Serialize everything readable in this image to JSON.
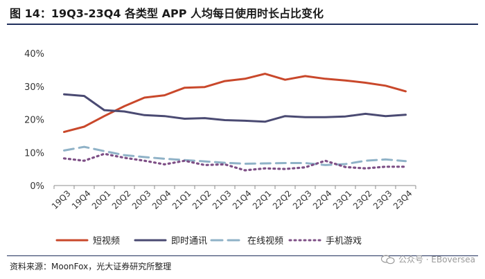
{
  "header": {
    "title": "图 14：19Q3-23Q4 各类型 APP 人均每日使用时长占比变化"
  },
  "footer": {
    "source": "资料来源：MoonFox，光大证券研究所整理",
    "watermark": "公众号 · EBoversea"
  },
  "chart_data": {
    "type": "line",
    "title": "19Q3-23Q4 各类型 APP 人均每日使用时长占比变化",
    "categories": [
      "19Q3",
      "19Q4",
      "20Q1",
      "20Q2",
      "20Q3",
      "20Q4",
      "21Q1",
      "21Q2",
      "21Q3",
      "21Q4",
      "22Q1",
      "22Q2",
      "22Q3",
      "22Q4",
      "23Q1",
      "23Q2",
      "23Q3",
      "23Q4"
    ],
    "ylim": [
      0,
      40
    ],
    "yticks": [
      0,
      10,
      20,
      30,
      40
    ],
    "ytick_labels": [
      "0%",
      "10%",
      "20%",
      "30%",
      "40%"
    ],
    "series": [
      {
        "name": "短视频",
        "color": "#c9482b",
        "dash": "solid",
        "values": [
          16.2,
          17.8,
          21.0,
          24.0,
          26.6,
          27.3,
          29.6,
          29.8,
          31.6,
          32.3,
          33.8,
          32.0,
          33.1,
          32.3,
          31.8,
          31.1,
          30.2,
          28.5
        ]
      },
      {
        "name": "即时通讯",
        "color": "#4a4a72",
        "dash": "solid",
        "values": [
          27.6,
          27.1,
          22.8,
          22.4,
          21.3,
          21.0,
          20.2,
          20.4,
          19.8,
          19.6,
          19.3,
          21.0,
          20.7,
          20.7,
          20.9,
          21.7,
          21.0,
          21.4
        ]
      },
      {
        "name": "在线视频",
        "color": "#8fb2c7",
        "dash": "longdash",
        "values": [
          10.6,
          11.7,
          10.4,
          9.2,
          8.6,
          8.1,
          7.7,
          7.3,
          6.9,
          6.6,
          6.7,
          6.8,
          6.8,
          6.2,
          6.5,
          7.5,
          7.9,
          7.4
        ]
      },
      {
        "name": "手机游戏",
        "color": "#7e4f86",
        "dash": "dots",
        "values": [
          8.2,
          7.5,
          9.6,
          8.4,
          7.5,
          6.4,
          7.5,
          6.2,
          6.4,
          4.6,
          5.2,
          5.0,
          5.5,
          7.5,
          5.6,
          5.2,
          5.7,
          5.7
        ]
      }
    ],
    "legend_position": "bottom"
  }
}
